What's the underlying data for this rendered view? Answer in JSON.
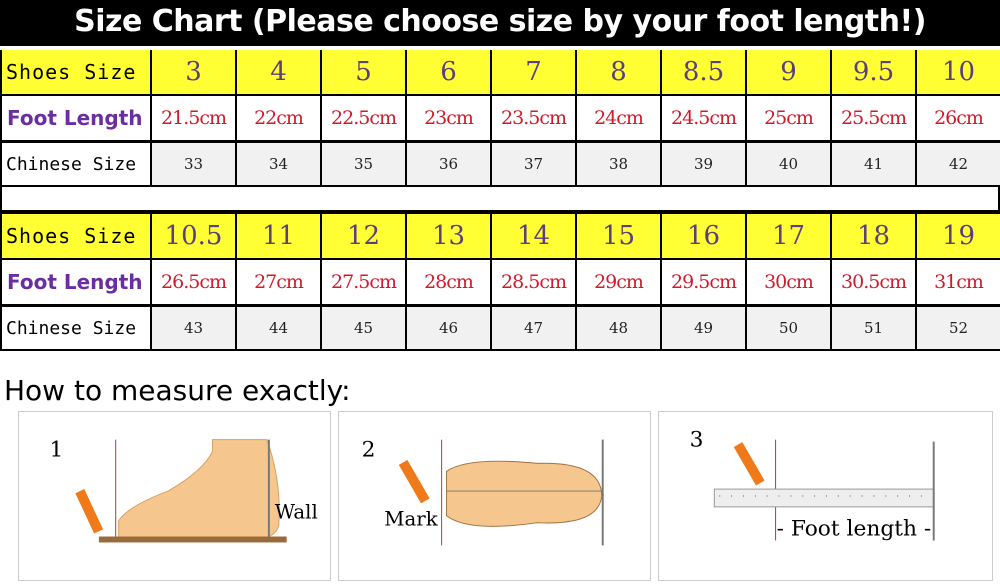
{
  "title": "Size Chart (Please choose size by your foot length!)",
  "labels": {
    "shoes_size": "Shoes Size",
    "foot_length": "Foot Length",
    "chinese_size": "Chinese Size"
  },
  "table1": {
    "shoes": [
      "3",
      "4",
      "5",
      "6",
      "7",
      "8",
      "8.5",
      "9",
      "9.5",
      "10"
    ],
    "foot": [
      "21.5cm",
      "22cm",
      "22.5cm",
      "23cm",
      "23.5cm",
      "24cm",
      "24.5cm",
      "25cm",
      "25.5cm",
      "26cm"
    ],
    "chinese": [
      "33",
      "34",
      "35",
      "36",
      "37",
      "38",
      "39",
      "40",
      "41",
      "42"
    ]
  },
  "table2": {
    "shoes": [
      "10.5",
      "11",
      "12",
      "13",
      "14",
      "15",
      "16",
      "17",
      "18",
      "19"
    ],
    "foot": [
      "26.5cm",
      "27cm",
      "27.5cm",
      "28cm",
      "28.5cm",
      "29cm",
      "29.5cm",
      "30cm",
      "30.5cm",
      "31cm"
    ],
    "chinese": [
      "43",
      "44",
      "45",
      "46",
      "47",
      "48",
      "49",
      "50",
      "51",
      "52"
    ]
  },
  "howto": {
    "heading": "How to measure exactly:",
    "steps": [
      {
        "num": "1",
        "label": "Wall"
      },
      {
        "num": "2",
        "label": "Mark"
      },
      {
        "num": "3",
        "label": "- Foot length -"
      }
    ]
  },
  "colors": {
    "header_bg": "#000000",
    "shoes_row": "#ffff33",
    "foot_text": "#d01a2a",
    "foot_label": "#6a2ea0"
  }
}
